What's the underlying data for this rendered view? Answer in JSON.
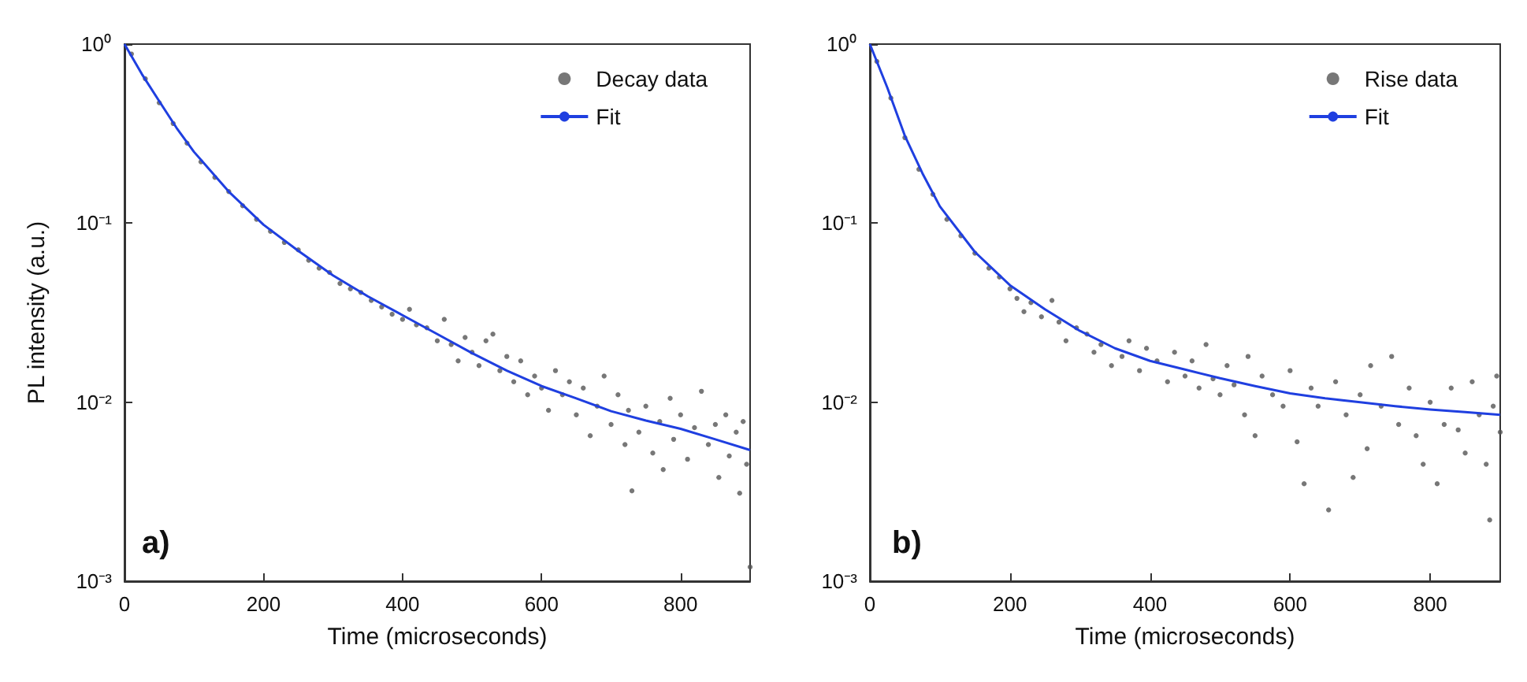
{
  "chart_data": [
    {
      "type": "scatter",
      "xlabel": "Time (microseconds)",
      "ylabel": "PL intensity (a.u.)",
      "log": "y",
      "xlim": [
        0,
        900
      ],
      "xticks": [
        0,
        200,
        400,
        600,
        800
      ],
      "ylim": [
        0.001,
        1
      ],
      "yticks": [
        {
          "value": 1,
          "label": "10⁰"
        },
        {
          "value": 0.1,
          "label": "10⁻¹"
        },
        {
          "value": 0.01,
          "label": "10⁻²"
        },
        {
          "value": 0.001,
          "label": "10⁻³"
        }
      ],
      "legend": "top right",
      "grid": false,
      "annotations": [
        "a)"
      ],
      "series": [
        {
          "name": "Decay data",
          "type": "scatter",
          "marker": "circle",
          "color": "#555555",
          "x": [
            10,
            30,
            50,
            70,
            90,
            110,
            130,
            150,
            170,
            190,
            210,
            230,
            250,
            265,
            280,
            295,
            310,
            325,
            340,
            355,
            370,
            385,
            400,
            410,
            420,
            435,
            450,
            460,
            470,
            480,
            490,
            500,
            510,
            520,
            530,
            540,
            550,
            560,
            570,
            580,
            590,
            600,
            610,
            620,
            630,
            640,
            650,
            660,
            670,
            680,
            690,
            700,
            710,
            720,
            725,
            730,
            740,
            750,
            760,
            770,
            775,
            785,
            790,
            800,
            810,
            820,
            830,
            840,
            850,
            855,
            865,
            870,
            880,
            885,
            890,
            895,
            900
          ],
          "values": [
            0.88,
            0.64,
            0.47,
            0.36,
            0.28,
            0.22,
            0.18,
            0.15,
            0.125,
            0.105,
            0.09,
            0.078,
            0.071,
            0.062,
            0.056,
            0.053,
            0.046,
            0.043,
            0.041,
            0.037,
            0.034,
            0.031,
            0.029,
            0.033,
            0.027,
            0.026,
            0.022,
            0.029,
            0.021,
            0.017,
            0.023,
            0.019,
            0.016,
            0.022,
            0.024,
            0.015,
            0.018,
            0.013,
            0.017,
            0.011,
            0.014,
            0.012,
            0.009,
            0.015,
            0.011,
            0.013,
            0.0085,
            0.012,
            0.0065,
            0.0095,
            0.014,
            0.0075,
            0.011,
            0.0058,
            0.009,
            0.0032,
            0.0068,
            0.0095,
            0.0052,
            0.0078,
            0.0042,
            0.0105,
            0.0062,
            0.0085,
            0.0048,
            0.0072,
            0.0115,
            0.0058,
            0.0075,
            0.0038,
            0.0085,
            0.005,
            0.0068,
            0.0031,
            0.0078,
            0.0045,
            0.0012
          ]
        },
        {
          "name": "Fit",
          "type": "line",
          "marker": "none",
          "line_style": "solid",
          "color": "#1f3fe0",
          "x": [
            0,
            25,
            50,
            75,
            100,
            150,
            200,
            250,
            300,
            350,
            400,
            450,
            500,
            550,
            600,
            650,
            700,
            750,
            800,
            850,
            900
          ],
          "values": [
            1,
            0.68,
            0.48,
            0.34,
            0.25,
            0.15,
            0.098,
            0.07,
            0.051,
            0.039,
            0.0306,
            0.024,
            0.0188,
            0.015,
            0.0123,
            0.0105,
            0.0089,
            0.0079,
            0.0071,
            0.0062,
            0.0054
          ]
        }
      ]
    },
    {
      "type": "scatter",
      "xlabel": "Time (microseconds)",
      "log": "y",
      "xlim": [
        0,
        900
      ],
      "xticks": [
        0,
        200,
        400,
        600,
        800
      ],
      "ylim": [
        0.001,
        1
      ],
      "yticks": [
        {
          "value": 1,
          "label": "10⁰"
        },
        {
          "value": 0.1,
          "label": "10⁻¹"
        },
        {
          "value": 0.01,
          "label": "10⁻²"
        },
        {
          "value": 0.001,
          "label": "10⁻³"
        }
      ],
      "legend": "top right",
      "grid": false,
      "annotations": [
        "b)"
      ],
      "series": [
        {
          "name": "Rise data",
          "type": "scatter",
          "marker": "circle",
          "color": "#555555",
          "x": [
            10,
            30,
            50,
            70,
            90,
            110,
            130,
            150,
            170,
            185,
            200,
            210,
            220,
            230,
            245,
            260,
            270,
            280,
            295,
            310,
            320,
            330,
            345,
            360,
            370,
            385,
            395,
            410,
            425,
            435,
            450,
            460,
            470,
            480,
            490,
            500,
            510,
            520,
            535,
            540,
            550,
            560,
            575,
            590,
            600,
            610,
            620,
            630,
            640,
            655,
            665,
            680,
            690,
            700,
            710,
            715,
            730,
            745,
            755,
            770,
            780,
            790,
            800,
            810,
            820,
            830,
            840,
            850,
            860,
            870,
            880,
            885,
            890,
            895,
            900
          ],
          "values": [
            0.8,
            0.5,
            0.3,
            0.2,
            0.145,
            0.105,
            0.085,
            0.068,
            0.056,
            0.05,
            0.043,
            0.038,
            0.032,
            0.036,
            0.03,
            0.037,
            0.028,
            0.022,
            0.026,
            0.024,
            0.019,
            0.021,
            0.016,
            0.018,
            0.022,
            0.015,
            0.02,
            0.017,
            0.013,
            0.019,
            0.014,
            0.017,
            0.012,
            0.021,
            0.0135,
            0.011,
            0.016,
            0.0125,
            0.0085,
            0.018,
            0.0065,
            0.014,
            0.011,
            0.0095,
            0.015,
            0.006,
            0.0035,
            0.012,
            0.0095,
            0.0025,
            0.013,
            0.0085,
            0.0038,
            0.011,
            0.0055,
            0.016,
            0.0095,
            0.018,
            0.0075,
            0.012,
            0.0065,
            0.0045,
            0.01,
            0.0035,
            0.0075,
            0.012,
            0.007,
            0.0052,
            0.013,
            0.0085,
            0.0045,
            0.0022,
            0.0095,
            0.014,
            0.0068
          ]
        },
        {
          "name": "Fit",
          "type": "line",
          "marker": "none",
          "line_style": "solid",
          "color": "#1f3fe0",
          "x": [
            0,
            25,
            50,
            75,
            100,
            150,
            200,
            250,
            300,
            350,
            400,
            450,
            500,
            550,
            600,
            650,
            700,
            750,
            800,
            850,
            900
          ],
          "values": [
            1,
            0.57,
            0.307,
            0.19,
            0.124,
            0.069,
            0.045,
            0.033,
            0.025,
            0.02,
            0.017,
            0.0152,
            0.0136,
            0.0123,
            0.0112,
            0.0105,
            0.01,
            0.0095,
            0.0091,
            0.0088,
            0.0085
          ]
        }
      ]
    }
  ]
}
